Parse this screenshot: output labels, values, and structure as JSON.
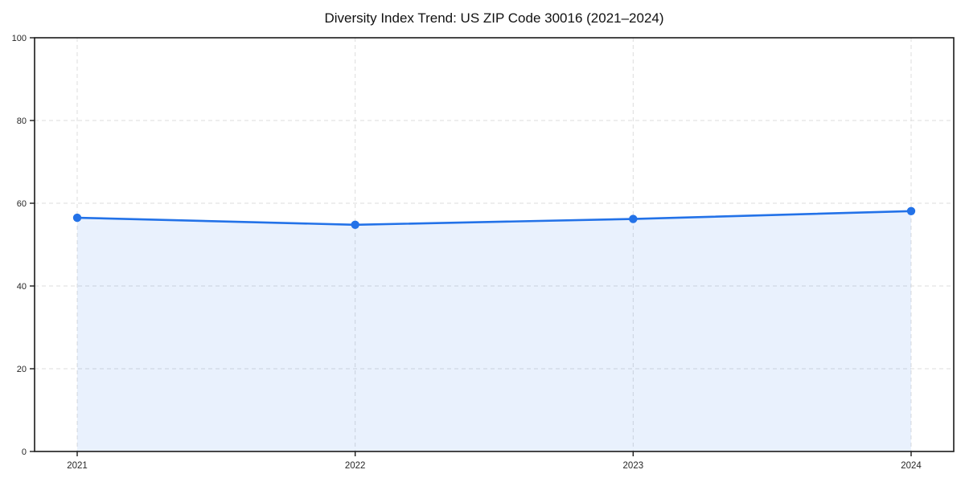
{
  "chart_data": {
    "type": "line",
    "title": "Diversity Index Trend: US ZIP Code 30016 (2021–2024)",
    "x": [
      "2021",
      "2022",
      "2023",
      "2024"
    ],
    "series": [
      {
        "name": "Diversity Index",
        "values": [
          56.5,
          54.8,
          56.2,
          58.1
        ]
      }
    ],
    "xlabel": "",
    "ylabel": "",
    "ylim": [
      0,
      100
    ],
    "yticks": [
      0,
      20,
      40,
      60,
      80,
      100
    ],
    "grid": "dashed, horizontal and vertical",
    "legend_position": "none",
    "area_fill": true,
    "markers": "filled circles",
    "colors": {
      "line": "#2372e8",
      "marker": "#2372e8",
      "area_fill_color": "#2372e8",
      "area_fill_opacity": 0.1,
      "grid": "#dcdcdc",
      "frame": "#1a1a1a",
      "tick_label": "#262626",
      "title": "#111111",
      "background": "#ffffff"
    }
  }
}
